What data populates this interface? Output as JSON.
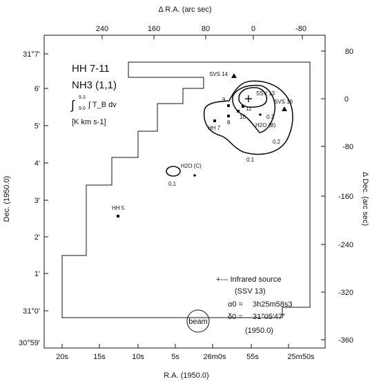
{
  "chart_data": {
    "type": "contour_map",
    "title_lines": [
      "HH 7-11",
      "NH3 (1,1)",
      "[K km s-1]"
    ],
    "integral_label": "∫ T_B dv",
    "integral_upper": "9.3",
    "integral_lower": "9.0",
    "xlabel_bottom": "R.A. (1950.0)",
    "xlabel_top": "Δ R.A. (arc sec)",
    "ylabel_left": "Dec. (1950.0)",
    "ylabel_right": "Δ Dec. (arc sec)",
    "bottom_ticks": [
      "20s",
      "15s",
      "10s",
      "5s",
      "26m0s",
      "55s",
      "25m50s"
    ],
    "top_ticks": [
      "240",
      "160",
      "80",
      "0",
      "-80"
    ],
    "left_ticks": [
      "31°7'",
      "6'",
      "5'",
      "4'",
      "3'",
      "2'",
      "1'",
      "31°0'",
      "30°59'"
    ],
    "right_ticks": [
      "80",
      "0",
      "-80",
      "-160",
      "-240",
      "-320",
      "-360"
    ],
    "contour_levels": [
      "0.1",
      "0.2",
      "0.3"
    ],
    "sources": [
      {
        "label": "SVS 14",
        "marker": "triangle"
      },
      {
        "label": "SVS 16",
        "marker": "triangle"
      },
      {
        "label": "SSV 13",
        "marker": "cross"
      },
      {
        "label": "HH 7",
        "marker": "square"
      },
      {
        "label": "8",
        "marker": "square"
      },
      {
        "label": "9",
        "marker": "square"
      },
      {
        "label": "10",
        "marker": "square"
      },
      {
        "label": "11",
        "marker": "square"
      },
      {
        "label": "HH 5",
        "marker": "square"
      },
      {
        "label": "H2O (B)",
        "marker": "dot"
      },
      {
        "label": "H2O (C)",
        "marker": "dot"
      }
    ],
    "legend": {
      "infrared": "+--- Infrared source",
      "ssv": "(SSV 13)",
      "alpha_label": "α0 =",
      "alpha_value": "3h25m58s3",
      "delta_label": "δ0 =",
      "delta_value": "31°05′47″",
      "epoch": "(1950.0)",
      "beam": "beam"
    }
  }
}
